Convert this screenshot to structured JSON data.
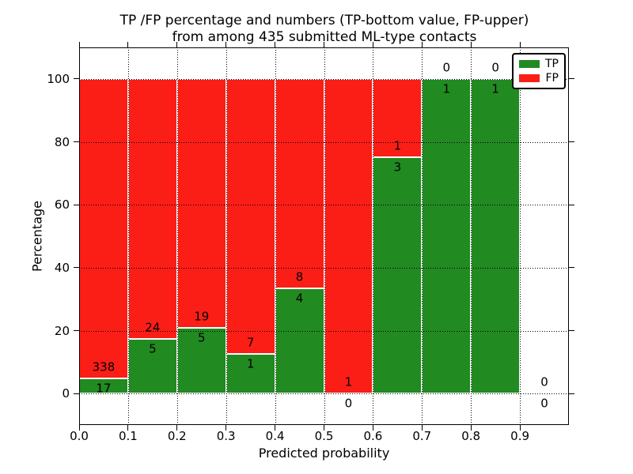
{
  "chart_data": {
    "type": "bar",
    "variant": "stacked-100-percent",
    "title_line1": "TP /FP percentage and numbers (TP-bottom value, FP-upper)",
    "title_line2": "from among 435 submitted ML-type contacts",
    "xlabel": "Predicted probability",
    "ylabel": "Percentage",
    "total_submitted_contacts": 435,
    "xlim": [
      0.0,
      1.0
    ],
    "ylim": [
      -10,
      110
    ],
    "xtick_labels": [
      "0.0",
      "0.1",
      "0.2",
      "0.3",
      "0.4",
      "0.5",
      "0.6",
      "0.7",
      "0.8",
      "0.9"
    ],
    "yticks": [
      0,
      20,
      40,
      60,
      80,
      100
    ],
    "grid": {
      "visible": true,
      "style": "dotted",
      "color": "#000000",
      "above_bars": true
    },
    "bin_width": 0.1,
    "categories": [
      "0.0-0.1",
      "0.1-0.2",
      "0.2-0.3",
      "0.3-0.4",
      "0.4-0.5",
      "0.5-0.6",
      "0.6-0.7",
      "0.7-0.8",
      "0.8-0.9",
      "0.9-1.0"
    ],
    "series": [
      {
        "name": "TP",
        "color": "#218a21",
        "values": [
          17,
          5,
          5,
          1,
          4,
          0,
          3,
          1,
          1,
          0
        ]
      },
      {
        "name": "FP",
        "color": "#fb1e16",
        "values": [
          338,
          24,
          19,
          7,
          8,
          1,
          1,
          0,
          0,
          0
        ]
      }
    ],
    "tp_percent_per_bin": [
      4.8,
      17.2,
      20.8,
      12.5,
      33.3,
      0.0,
      75.0,
      100.0,
      100.0,
      null
    ],
    "legend": {
      "position": "upper right",
      "entries": [
        {
          "label": "TP",
          "color": "#218a21"
        },
        {
          "label": "FP",
          "color": "#fb1e16"
        }
      ]
    }
  }
}
